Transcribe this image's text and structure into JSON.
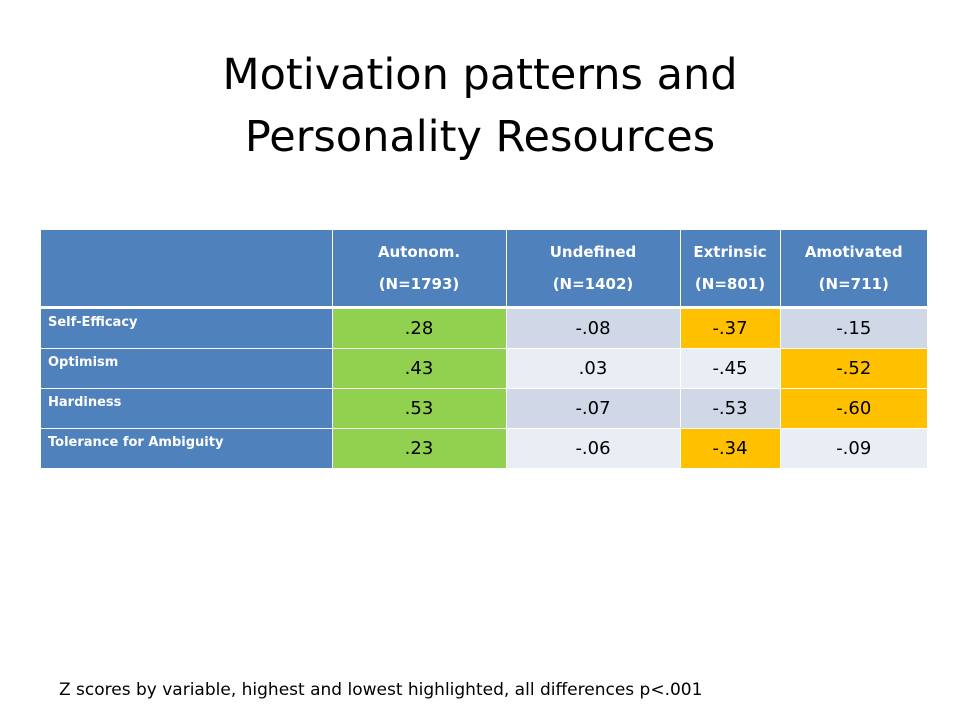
{
  "title": {
    "line1": "Motivation patterns and",
    "line2": "Personality Resources"
  },
  "table": {
    "columns": [
      {
        "name": "Autonom.",
        "n": "(N=1793)"
      },
      {
        "name": "Undefined",
        "n": "(N=1402)"
      },
      {
        "name": "Extrinsic",
        "n": "(N=801)"
      },
      {
        "name": "Amotivated",
        "n": "(N=711)"
      }
    ],
    "rows": [
      {
        "label": "Self-Efficacy",
        "values": [
          ".28",
          "-.08",
          "-.37",
          "-.15"
        ]
      },
      {
        "label": "Optimism",
        "values": [
          ".43",
          ".03",
          "-.45",
          "-.52"
        ]
      },
      {
        "label": "Hardiness",
        "values": [
          ".53",
          "-.07",
          "-.53",
          "-.60"
        ]
      },
      {
        "label": "Tolerance for Ambiguity",
        "values": [
          ".23",
          "-.06",
          "-.34",
          "-.09"
        ]
      }
    ],
    "colors": {
      "header_blue": "#4f81bd",
      "highest_green": "#92d050",
      "lowest_orange": "#ffc000",
      "band_dark": "#d0d8e8",
      "band_light": "#e9edf4"
    }
  },
  "footnote": "Z scores by variable, highest and lowest highlighted, all differences p<.001"
}
